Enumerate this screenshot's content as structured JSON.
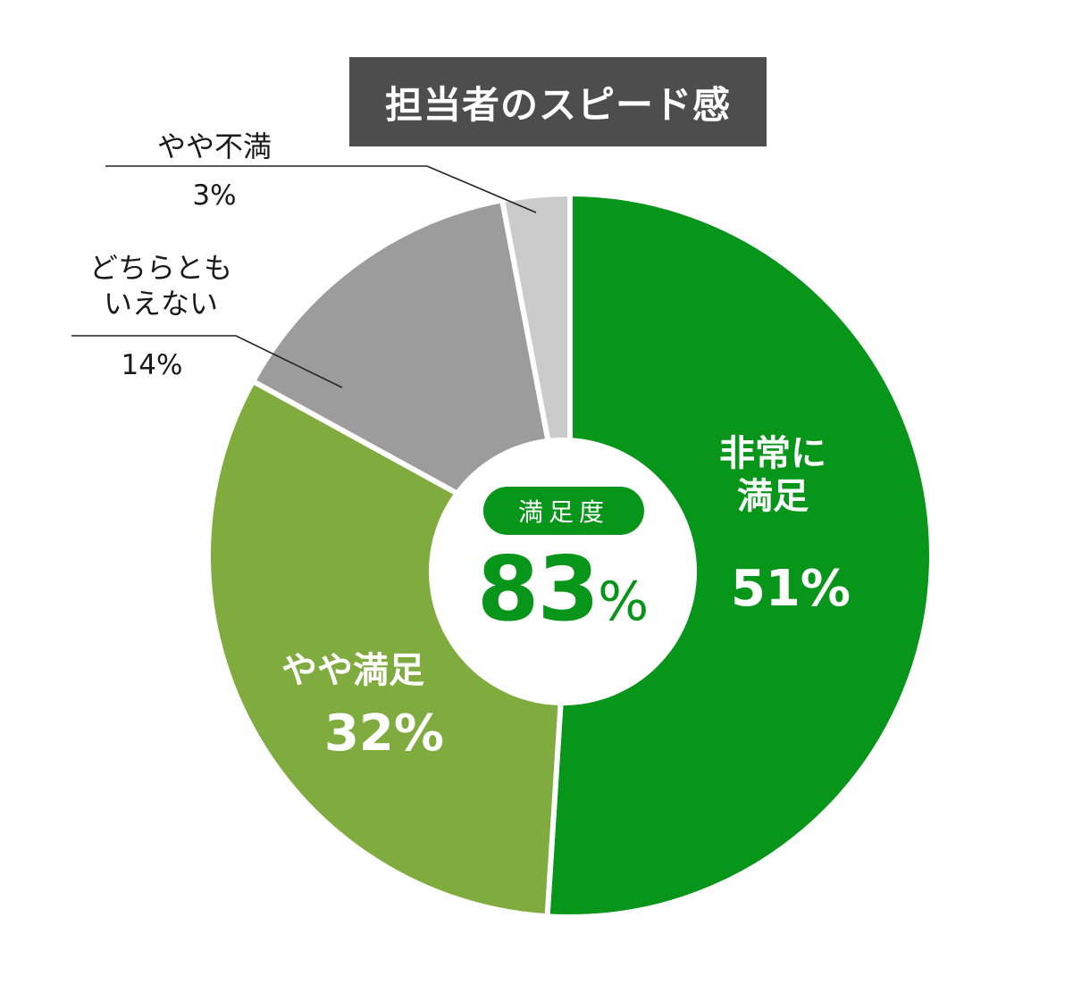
{
  "chart_data": {
    "type": "pie",
    "title": "担当者のスピード感",
    "center": {
      "badge": "満足度",
      "value": "83",
      "unit": "%"
    },
    "slices": [
      {
        "label_line1": "非常に",
        "label_line2": "満足",
        "value": 51,
        "display": "51%",
        "color": "#07951a"
      },
      {
        "label_line1": "やや満足",
        "label_line2": "",
        "value": 32,
        "display": "32%",
        "color": "#7fab3f"
      },
      {
        "label_line1": "どちらとも",
        "label_line2": "いえない",
        "value": 14,
        "display": "14%",
        "color": "#9c9c9c"
      },
      {
        "label_line1": "やや不満",
        "label_line2": "",
        "value": 3,
        "display": "3%",
        "color": "#cbcbcb"
      }
    ],
    "colors": {
      "title_bg": "#4d4d4d",
      "accent": "#07951a"
    }
  }
}
